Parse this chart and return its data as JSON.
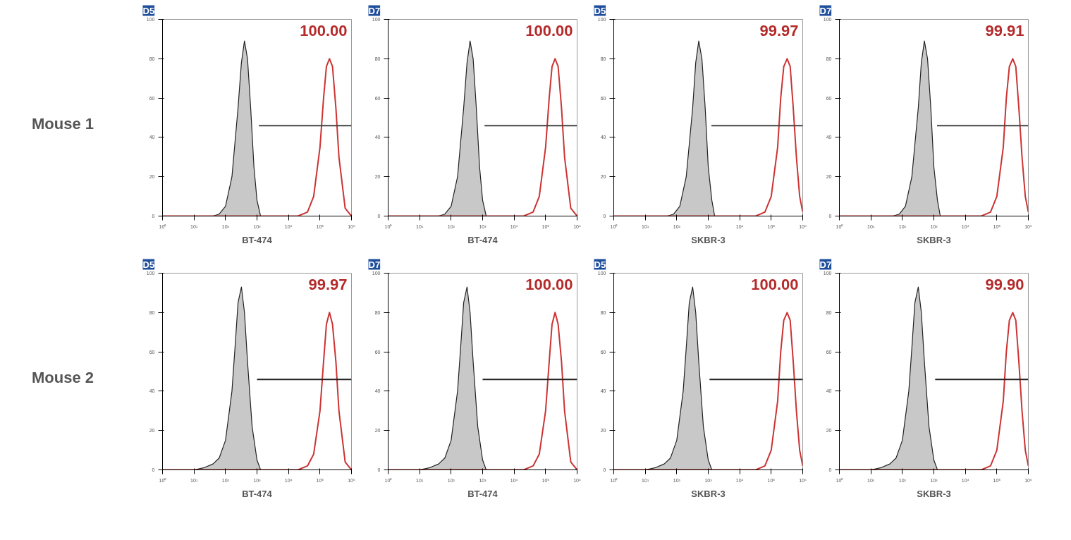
{
  "chart_data": [
    {
      "type": "area",
      "title": "D5",
      "xlabel": "BT-474",
      "log": "x",
      "grid": false,
      "legend": false,
      "xlim": [
        1,
        1000000
      ],
      "ylim": [
        0,
        100
      ],
      "xticks": [
        {
          "value": 1,
          "label": "10⁰"
        },
        {
          "value": 10,
          "label": "10¹"
        },
        {
          "value": 100,
          "label": "10²"
        },
        {
          "value": 1000,
          "label": "10³"
        },
        {
          "value": 10000,
          "label": "10⁴"
        },
        {
          "value": 100000,
          "label": "10⁵"
        },
        {
          "value": 1000000,
          "label": "10⁶"
        }
      ],
      "yticks": [
        0,
        20,
        40,
        60,
        80,
        100
      ],
      "annotations": [
        "Mouse 1"
      ],
      "series": [
        {
          "color": "#c8c8c8",
          "x": [
            1,
            40,
            63,
            100,
            160,
            250,
            320,
            400,
            500,
            630,
            800,
            1000,
            1300,
            1000000
          ],
          "values": [
            0,
            0,
            1,
            5,
            20,
            55,
            78,
            89,
            80,
            55,
            25,
            8,
            0,
            0
          ]
        },
        {
          "type": "line",
          "color": "#cc3333",
          "x": [
            1,
            20000,
            40000,
            63000,
            100000,
            130000,
            160000,
            200000,
            250000,
            320000,
            400000,
            630000,
            1000000
          ],
          "values": [
            0,
            0,
            2,
            10,
            35,
            60,
            76,
            80,
            76,
            55,
            30,
            4,
            0
          ]
        },
        {
          "type": "line",
          "name": "100.00",
          "color": "#444444",
          "x": [
            1150,
            1000000
          ],
          "values": [
            46,
            46
          ]
        }
      ]
    },
    {
      "type": "area",
      "title": "D7",
      "xlabel": "BT-474",
      "log": "x",
      "grid": false,
      "legend": false,
      "xlim": [
        1,
        1000000
      ],
      "ylim": [
        0,
        100
      ],
      "xticks": [
        {
          "value": 1,
          "label": "10⁰"
        },
        {
          "value": 10,
          "label": "10¹"
        },
        {
          "value": 100,
          "label": "10²"
        },
        {
          "value": 1000,
          "label": "10³"
        },
        {
          "value": 10000,
          "label": "10⁴"
        },
        {
          "value": 100000,
          "label": "10⁵"
        },
        {
          "value": 1000000,
          "label": "10⁶"
        }
      ],
      "yticks": [
        0,
        20,
        40,
        60,
        80,
        100
      ],
      "series": [
        {
          "color": "#c8c8c8",
          "x": [
            1,
            40,
            63,
            100,
            160,
            250,
            320,
            400,
            500,
            630,
            800,
            1000,
            1300,
            1000000
          ],
          "values": [
            0,
            0,
            1,
            5,
            20,
            55,
            78,
            89,
            80,
            55,
            25,
            8,
            0,
            0
          ]
        },
        {
          "type": "line",
          "color": "#cc3333",
          "x": [
            1,
            20000,
            40000,
            63000,
            100000,
            130000,
            160000,
            200000,
            250000,
            320000,
            400000,
            630000,
            1000000
          ],
          "values": [
            0,
            0,
            2,
            10,
            35,
            60,
            76,
            80,
            76,
            55,
            30,
            4,
            0
          ]
        },
        {
          "type": "line",
          "name": "100.00",
          "color": "#444444",
          "x": [
            1150,
            1000000
          ],
          "values": [
            46,
            46
          ]
        }
      ]
    },
    {
      "type": "area",
      "title": "D5",
      "xlabel": "SKBR-3",
      "log": "x",
      "grid": false,
      "legend": false,
      "xlim": [
        1,
        1000000
      ],
      "ylim": [
        0,
        100
      ],
      "xticks": [
        {
          "value": 1,
          "label": "10⁰"
        },
        {
          "value": 10,
          "label": "10¹"
        },
        {
          "value": 100,
          "label": "10²"
        },
        {
          "value": 1000,
          "label": "10³"
        },
        {
          "value": 10000,
          "label": "10⁴"
        },
        {
          "value": 100000,
          "label": "10⁵"
        },
        {
          "value": 1000000,
          "label": "10⁶"
        }
      ],
      "yticks": [
        0,
        20,
        40,
        60,
        80,
        100
      ],
      "series": [
        {
          "color": "#c8c8c8",
          "x": [
            1,
            50,
            80,
            125,
            200,
            320,
            400,
            500,
            630,
            800,
            1000,
            1300,
            1600,
            1000000
          ],
          "values": [
            0,
            0,
            1,
            5,
            20,
            55,
            78,
            89,
            80,
            55,
            25,
            8,
            0,
            0
          ]
        },
        {
          "type": "line",
          "color": "#cc3333",
          "x": [
            1,
            32000,
            63000,
            100000,
            160000,
            200000,
            250000,
            320000,
            400000,
            500000,
            630000,
            800000,
            1000000
          ],
          "values": [
            0,
            0,
            2,
            10,
            35,
            60,
            76,
            80,
            76,
            55,
            30,
            10,
            2
          ]
        },
        {
          "type": "line",
          "name": "99.97",
          "color": "#444444",
          "x": [
            1260,
            1000000
          ],
          "values": [
            46,
            46
          ]
        }
      ]
    },
    {
      "type": "area",
      "title": "D7",
      "xlabel": "SKBR-3",
      "log": "x",
      "grid": false,
      "legend": false,
      "xlim": [
        1,
        1000000
      ],
      "ylim": [
        0,
        100
      ],
      "xticks": [
        {
          "value": 1,
          "label": "10⁰"
        },
        {
          "value": 10,
          "label": "10¹"
        },
        {
          "value": 100,
          "label": "10²"
        },
        {
          "value": 1000,
          "label": "10³"
        },
        {
          "value": 10000,
          "label": "10⁴"
        },
        {
          "value": 100000,
          "label": "10⁵"
        },
        {
          "value": 1000000,
          "label": "10⁶"
        }
      ],
      "yticks": [
        0,
        20,
        40,
        60,
        80,
        100
      ],
      "series": [
        {
          "color": "#c8c8c8",
          "x": [
            1,
            50,
            80,
            125,
            200,
            320,
            400,
            500,
            630,
            800,
            1000,
            1300,
            1600,
            1000000
          ],
          "values": [
            0,
            0,
            1,
            5,
            20,
            55,
            78,
            89,
            80,
            55,
            25,
            8,
            0,
            0
          ]
        },
        {
          "type": "line",
          "color": "#cc3333",
          "x": [
            1,
            32000,
            63000,
            100000,
            160000,
            200000,
            250000,
            320000,
            400000,
            500000,
            630000,
            800000,
            1000000
          ],
          "values": [
            0,
            0,
            2,
            10,
            35,
            60,
            76,
            80,
            76,
            55,
            30,
            10,
            2
          ]
        },
        {
          "type": "line",
          "name": "99.91",
          "color": "#444444",
          "x": [
            1260,
            1000000
          ],
          "values": [
            46,
            46
          ]
        }
      ]
    },
    {
      "type": "area",
      "title": "D5",
      "xlabel": "BT-474",
      "log": "x",
      "grid": false,
      "legend": false,
      "xlim": [
        1,
        1000000
      ],
      "ylim": [
        0,
        100
      ],
      "xticks": [
        {
          "value": 1,
          "label": "10⁰"
        },
        {
          "value": 10,
          "label": "10¹"
        },
        {
          "value": 100,
          "label": "10²"
        },
        {
          "value": 1000,
          "label": "10³"
        },
        {
          "value": 10000,
          "label": "10⁴"
        },
        {
          "value": 100000,
          "label": "10⁵"
        },
        {
          "value": 1000000,
          "label": "10⁶"
        }
      ],
      "yticks": [
        0,
        20,
        40,
        60,
        80,
        100
      ],
      "annotations": [
        "Mouse 2"
      ],
      "series": [
        {
          "color": "#c8c8c8",
          "x": [
            1,
            10,
            20,
            40,
            63,
            100,
            160,
            200,
            250,
            320,
            400,
            500,
            700,
            1000,
            1300,
            1000000
          ],
          "values": [
            0,
            0,
            1,
            3,
            6,
            15,
            40,
            62,
            85,
            93,
            80,
            55,
            22,
            5,
            0,
            0
          ]
        },
        {
          "type": "line",
          "color": "#cc3333",
          "x": [
            1,
            20000,
            40000,
            63000,
            100000,
            130000,
            160000,
            200000,
            250000,
            320000,
            400000,
            630000,
            1000000
          ],
          "values": [
            0,
            0,
            2,
            8,
            30,
            55,
            74,
            80,
            74,
            55,
            30,
            4,
            0
          ]
        },
        {
          "type": "line",
          "name": "99.97",
          "color": "#222222",
          "x": [
            1000,
            1000000
          ],
          "values": [
            46,
            46
          ]
        }
      ]
    },
    {
      "type": "area",
      "title": "D7",
      "xlabel": "BT-474",
      "log": "x",
      "grid": false,
      "legend": false,
      "xlim": [
        1,
        1000000
      ],
      "ylim": [
        0,
        100
      ],
      "xticks": [
        {
          "value": 1,
          "label": "10⁰"
        },
        {
          "value": 10,
          "label": "10¹"
        },
        {
          "value": 100,
          "label": "10²"
        },
        {
          "value": 1000,
          "label": "10³"
        },
        {
          "value": 10000,
          "label": "10⁴"
        },
        {
          "value": 100000,
          "label": "10⁵"
        },
        {
          "value": 1000000,
          "label": "10⁶"
        }
      ],
      "yticks": [
        0,
        20,
        40,
        60,
        80,
        100
      ],
      "series": [
        {
          "color": "#c8c8c8",
          "x": [
            1,
            10,
            20,
            40,
            63,
            100,
            160,
            200,
            250,
            320,
            400,
            500,
            700,
            1000,
            1300,
            1000000
          ],
          "values": [
            0,
            0,
            1,
            3,
            6,
            15,
            40,
            62,
            85,
            93,
            80,
            55,
            22,
            5,
            0,
            0
          ]
        },
        {
          "type": "line",
          "color": "#cc3333",
          "x": [
            1,
            20000,
            40000,
            63000,
            100000,
            130000,
            160000,
            200000,
            250000,
            320000,
            400000,
            630000,
            1000000
          ],
          "values": [
            0,
            0,
            2,
            8,
            30,
            55,
            74,
            80,
            74,
            55,
            30,
            4,
            0
          ]
        },
        {
          "type": "line",
          "name": "100.00",
          "color": "#222222",
          "x": [
            1000,
            1000000
          ],
          "values": [
            46,
            46
          ]
        }
      ]
    },
    {
      "type": "area",
      "title": "D5",
      "xlabel": "SKBR-3",
      "log": "x",
      "grid": false,
      "legend": false,
      "xlim": [
        1,
        1000000
      ],
      "ylim": [
        0,
        100
      ],
      "xticks": [
        {
          "value": 1,
          "label": "10⁰"
        },
        {
          "value": 10,
          "label": "10¹"
        },
        {
          "value": 100,
          "label": "10²"
        },
        {
          "value": 1000,
          "label": "10³"
        },
        {
          "value": 10000,
          "label": "10⁴"
        },
        {
          "value": 100000,
          "label": "10⁵"
        },
        {
          "value": 1000000,
          "label": "10⁶"
        }
      ],
      "yticks": [
        0,
        20,
        40,
        60,
        80,
        100
      ],
      "series": [
        {
          "color": "#c8c8c8",
          "x": [
            1,
            10,
            20,
            40,
            63,
            100,
            160,
            200,
            250,
            320,
            400,
            500,
            700,
            1000,
            1300,
            1000000
          ],
          "values": [
            0,
            0,
            1,
            3,
            6,
            15,
            40,
            62,
            85,
            93,
            80,
            55,
            22,
            5,
            0,
            0
          ]
        },
        {
          "type": "line",
          "color": "#cc3333",
          "x": [
            1,
            32000,
            63000,
            100000,
            160000,
            200000,
            250000,
            320000,
            400000,
            500000,
            630000,
            800000,
            1000000
          ],
          "values": [
            0,
            0,
            2,
            10,
            35,
            60,
            76,
            80,
            76,
            55,
            30,
            10,
            2
          ]
        },
        {
          "type": "line",
          "name": "100.00",
          "color": "#222222",
          "x": [
            1100,
            1000000
          ],
          "values": [
            46,
            46
          ]
        }
      ]
    },
    {
      "type": "area",
      "title": "D7",
      "xlabel": "SKBR-3",
      "log": "x",
      "grid": false,
      "legend": false,
      "xlim": [
        1,
        1000000
      ],
      "ylim": [
        0,
        100
      ],
      "xticks": [
        {
          "value": 1,
          "label": "10⁰"
        },
        {
          "value": 10,
          "label": "10¹"
        },
        {
          "value": 100,
          "label": "10²"
        },
        {
          "value": 1000,
          "label": "10³"
        },
        {
          "value": 10000,
          "label": "10⁴"
        },
        {
          "value": 100000,
          "label": "10⁵"
        },
        {
          "value": 1000000,
          "label": "10⁶"
        }
      ],
      "yticks": [
        0,
        20,
        40,
        60,
        80,
        100
      ],
      "series": [
        {
          "color": "#c8c8c8",
          "x": [
            1,
            10,
            20,
            40,
            63,
            100,
            160,
            200,
            250,
            320,
            400,
            500,
            700,
            1000,
            1300,
            1000000
          ],
          "values": [
            0,
            0,
            1,
            3,
            6,
            15,
            40,
            62,
            85,
            93,
            80,
            55,
            22,
            5,
            0,
            0
          ]
        },
        {
          "type": "line",
          "color": "#cc3333",
          "x": [
            1,
            32000,
            63000,
            100000,
            160000,
            200000,
            250000,
            320000,
            400000,
            500000,
            630000,
            800000,
            1000000
          ],
          "values": [
            0,
            0,
            2,
            10,
            35,
            60,
            76,
            80,
            76,
            55,
            30,
            10,
            2
          ]
        },
        {
          "type": "line",
          "name": "99.90",
          "color": "#222222",
          "x": [
            1100,
            1000000
          ],
          "values": [
            46,
            46
          ]
        }
      ]
    }
  ]
}
